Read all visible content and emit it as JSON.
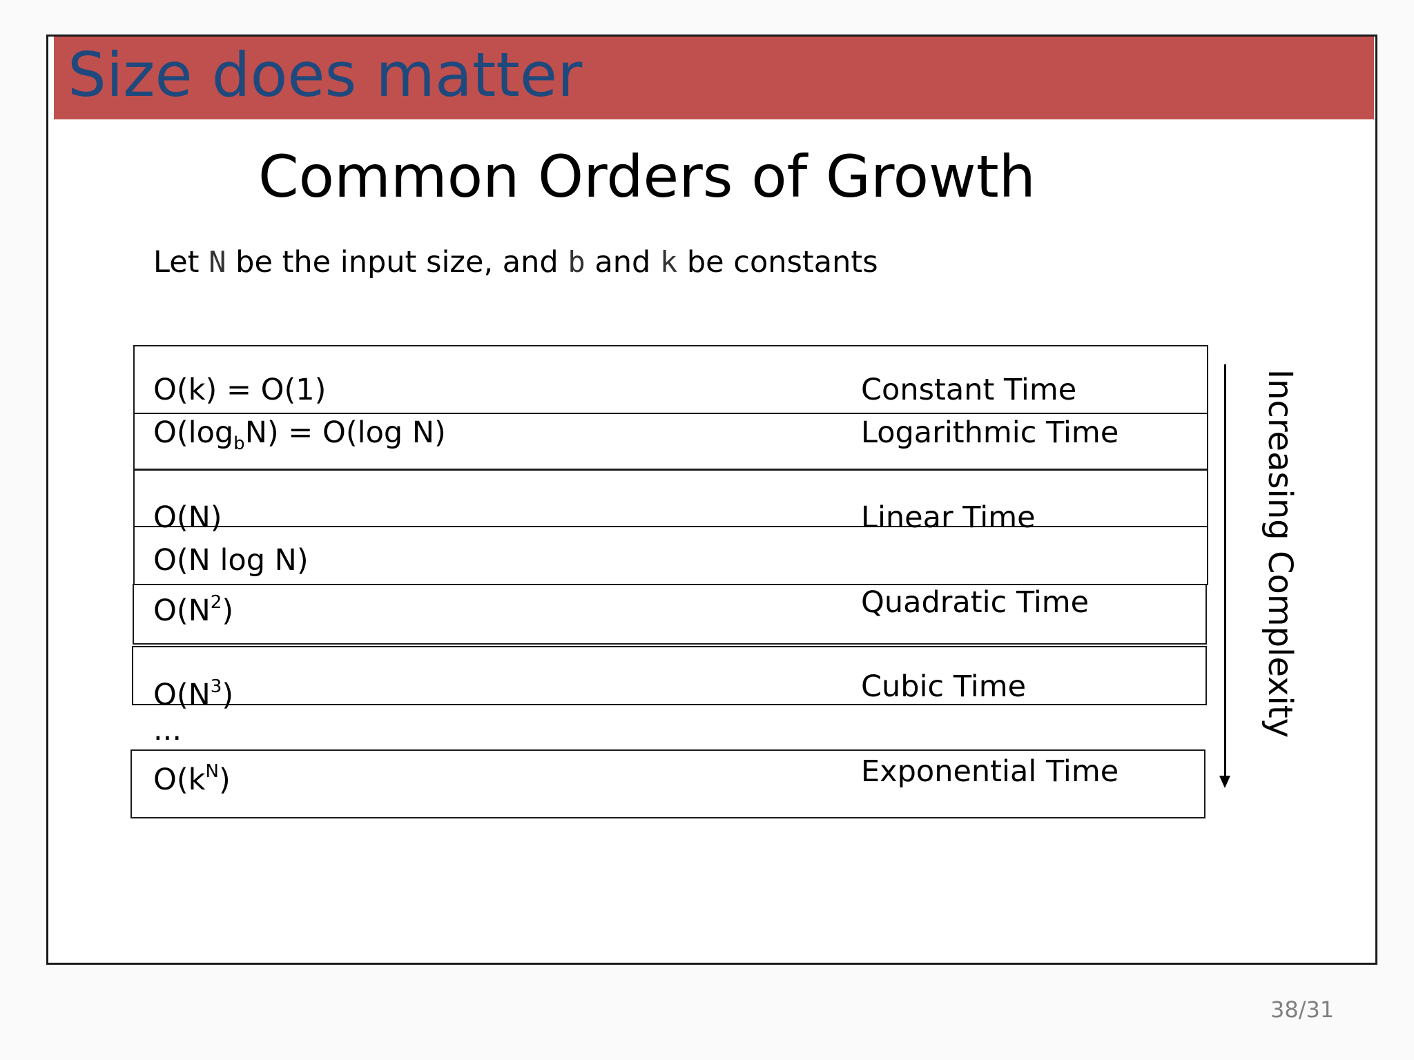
{
  "slide": {
    "title": "Size does matter",
    "subtitle": "Common Orders of Growth",
    "intro": {
      "part1": "Let ",
      "var_n": "N",
      "part2": " be the input size, and ",
      "var_b": "b",
      "part3": "  and ",
      "var_k": "k",
      "part4": " be constants"
    },
    "rows": [
      {
        "notation": "O(k) = O(1)",
        "name": "Constant Time"
      },
      {
        "notation_pre": "O(log",
        "notation_sub": "b",
        "notation_post": "N) = O(log N)",
        "name": "Logarithmic Time"
      },
      {
        "notation": "O(N)",
        "name": "Linear Time"
      },
      {
        "notation": "O(N log N)",
        "name": ""
      },
      {
        "notation_pre": "O(N",
        "notation_sup": "2",
        "notation_post": ")",
        "name": "Quadratic Time"
      },
      {
        "notation_pre": "O(N",
        "notation_sup": "3",
        "notation_post": ")",
        "name": "Cubic Time"
      },
      {
        "notation": "..."
      },
      {
        "notation_pre": "O(k",
        "notation_sup": "N",
        "notation_post": ")",
        "name": "Exponential Time"
      }
    ],
    "axis_label": "Increasing Complexity",
    "page_number": "38/31"
  },
  "colors": {
    "title_bar": "#c0504d",
    "title_text": "#1f497d",
    "page_number": "#7f7f7f"
  }
}
